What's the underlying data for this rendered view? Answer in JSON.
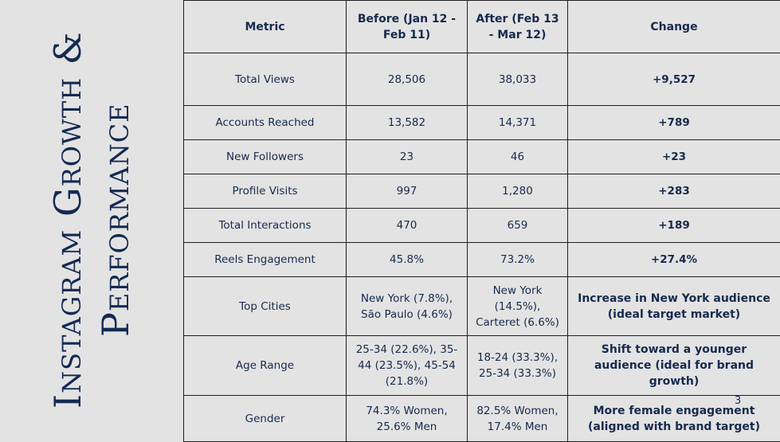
{
  "title": "Instagram Growth & Performance",
  "page_number": "3",
  "colors": {
    "background": "#e3e3e3",
    "text": "#162a4e",
    "border": "#1e1e1e"
  },
  "table": {
    "headers": [
      "Metric",
      "Before (Jan 12 - Feb 11)",
      "After (Feb 13 - Mar 12)",
      "Change"
    ],
    "rows": [
      [
        "Total Views",
        "28,506",
        "38,033",
        "+9,527"
      ],
      [
        "Accounts Reached",
        "13,582",
        "14,371",
        "+789"
      ],
      [
        "New Followers",
        "23",
        "46",
        "+23"
      ],
      [
        "Profile Visits",
        "997",
        "1,280",
        "+283"
      ],
      [
        "Total Interactions",
        "470",
        "659",
        "+189"
      ],
      [
        "Reels Engagement",
        "45.8%",
        "73.2%",
        "+27.4%"
      ],
      [
        "Top Cities",
        "New York (7.8%), São Paulo (4.6%)",
        "New York (14.5%), Carteret (6.6%)",
        "Increase in New York audience (ideal target market)"
      ],
      [
        "Age Range",
        "25-34 (22.6%), 35-44 (23.5%), 45-54 (21.8%)",
        "18-24 (33.3%), 25-34 (33.3%)",
        "Shift toward a younger audience (ideal for brand growth)"
      ],
      [
        "Gender",
        "74.3% Women, 25.6% Men",
        "82.5% Women, 17.4% Men",
        "More female engagement (aligned with brand target)"
      ]
    ]
  }
}
